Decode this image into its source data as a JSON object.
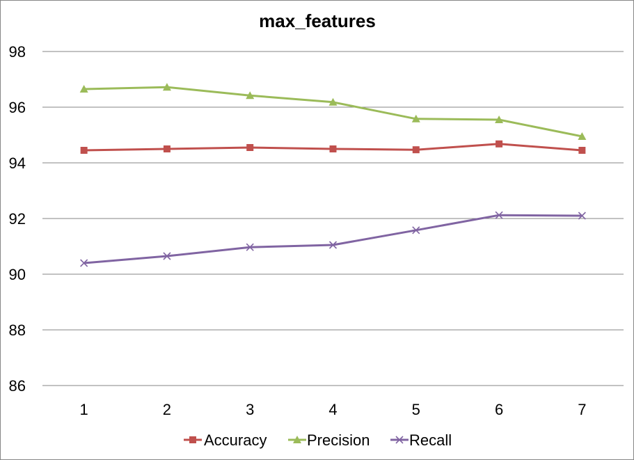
{
  "chart_data": {
    "type": "line",
    "title": "max_features",
    "xlabel": "",
    "ylabel": "",
    "x": [
      "1",
      "2",
      "3",
      "4",
      "5",
      "6",
      "7"
    ],
    "ylim": [
      86,
      98
    ],
    "yticks": [
      "86",
      "88",
      "90",
      "92",
      "94",
      "96",
      "98"
    ],
    "grid": true,
    "legend_position": "bottom",
    "series": [
      {
        "name": "Accuracy",
        "color": "#C0504D",
        "marker": "square",
        "values": [
          94.45,
          94.5,
          94.55,
          94.5,
          94.47,
          94.68,
          94.45
        ]
      },
      {
        "name": "Precision",
        "color": "#9BBB59",
        "marker": "triangle",
        "values": [
          96.65,
          96.72,
          96.42,
          96.18,
          95.58,
          95.55,
          94.95
        ]
      },
      {
        "name": "Recall",
        "color": "#8064A2",
        "marker": "x",
        "values": [
          90.4,
          90.65,
          90.97,
          91.05,
          91.58,
          92.12,
          92.1
        ]
      }
    ]
  }
}
